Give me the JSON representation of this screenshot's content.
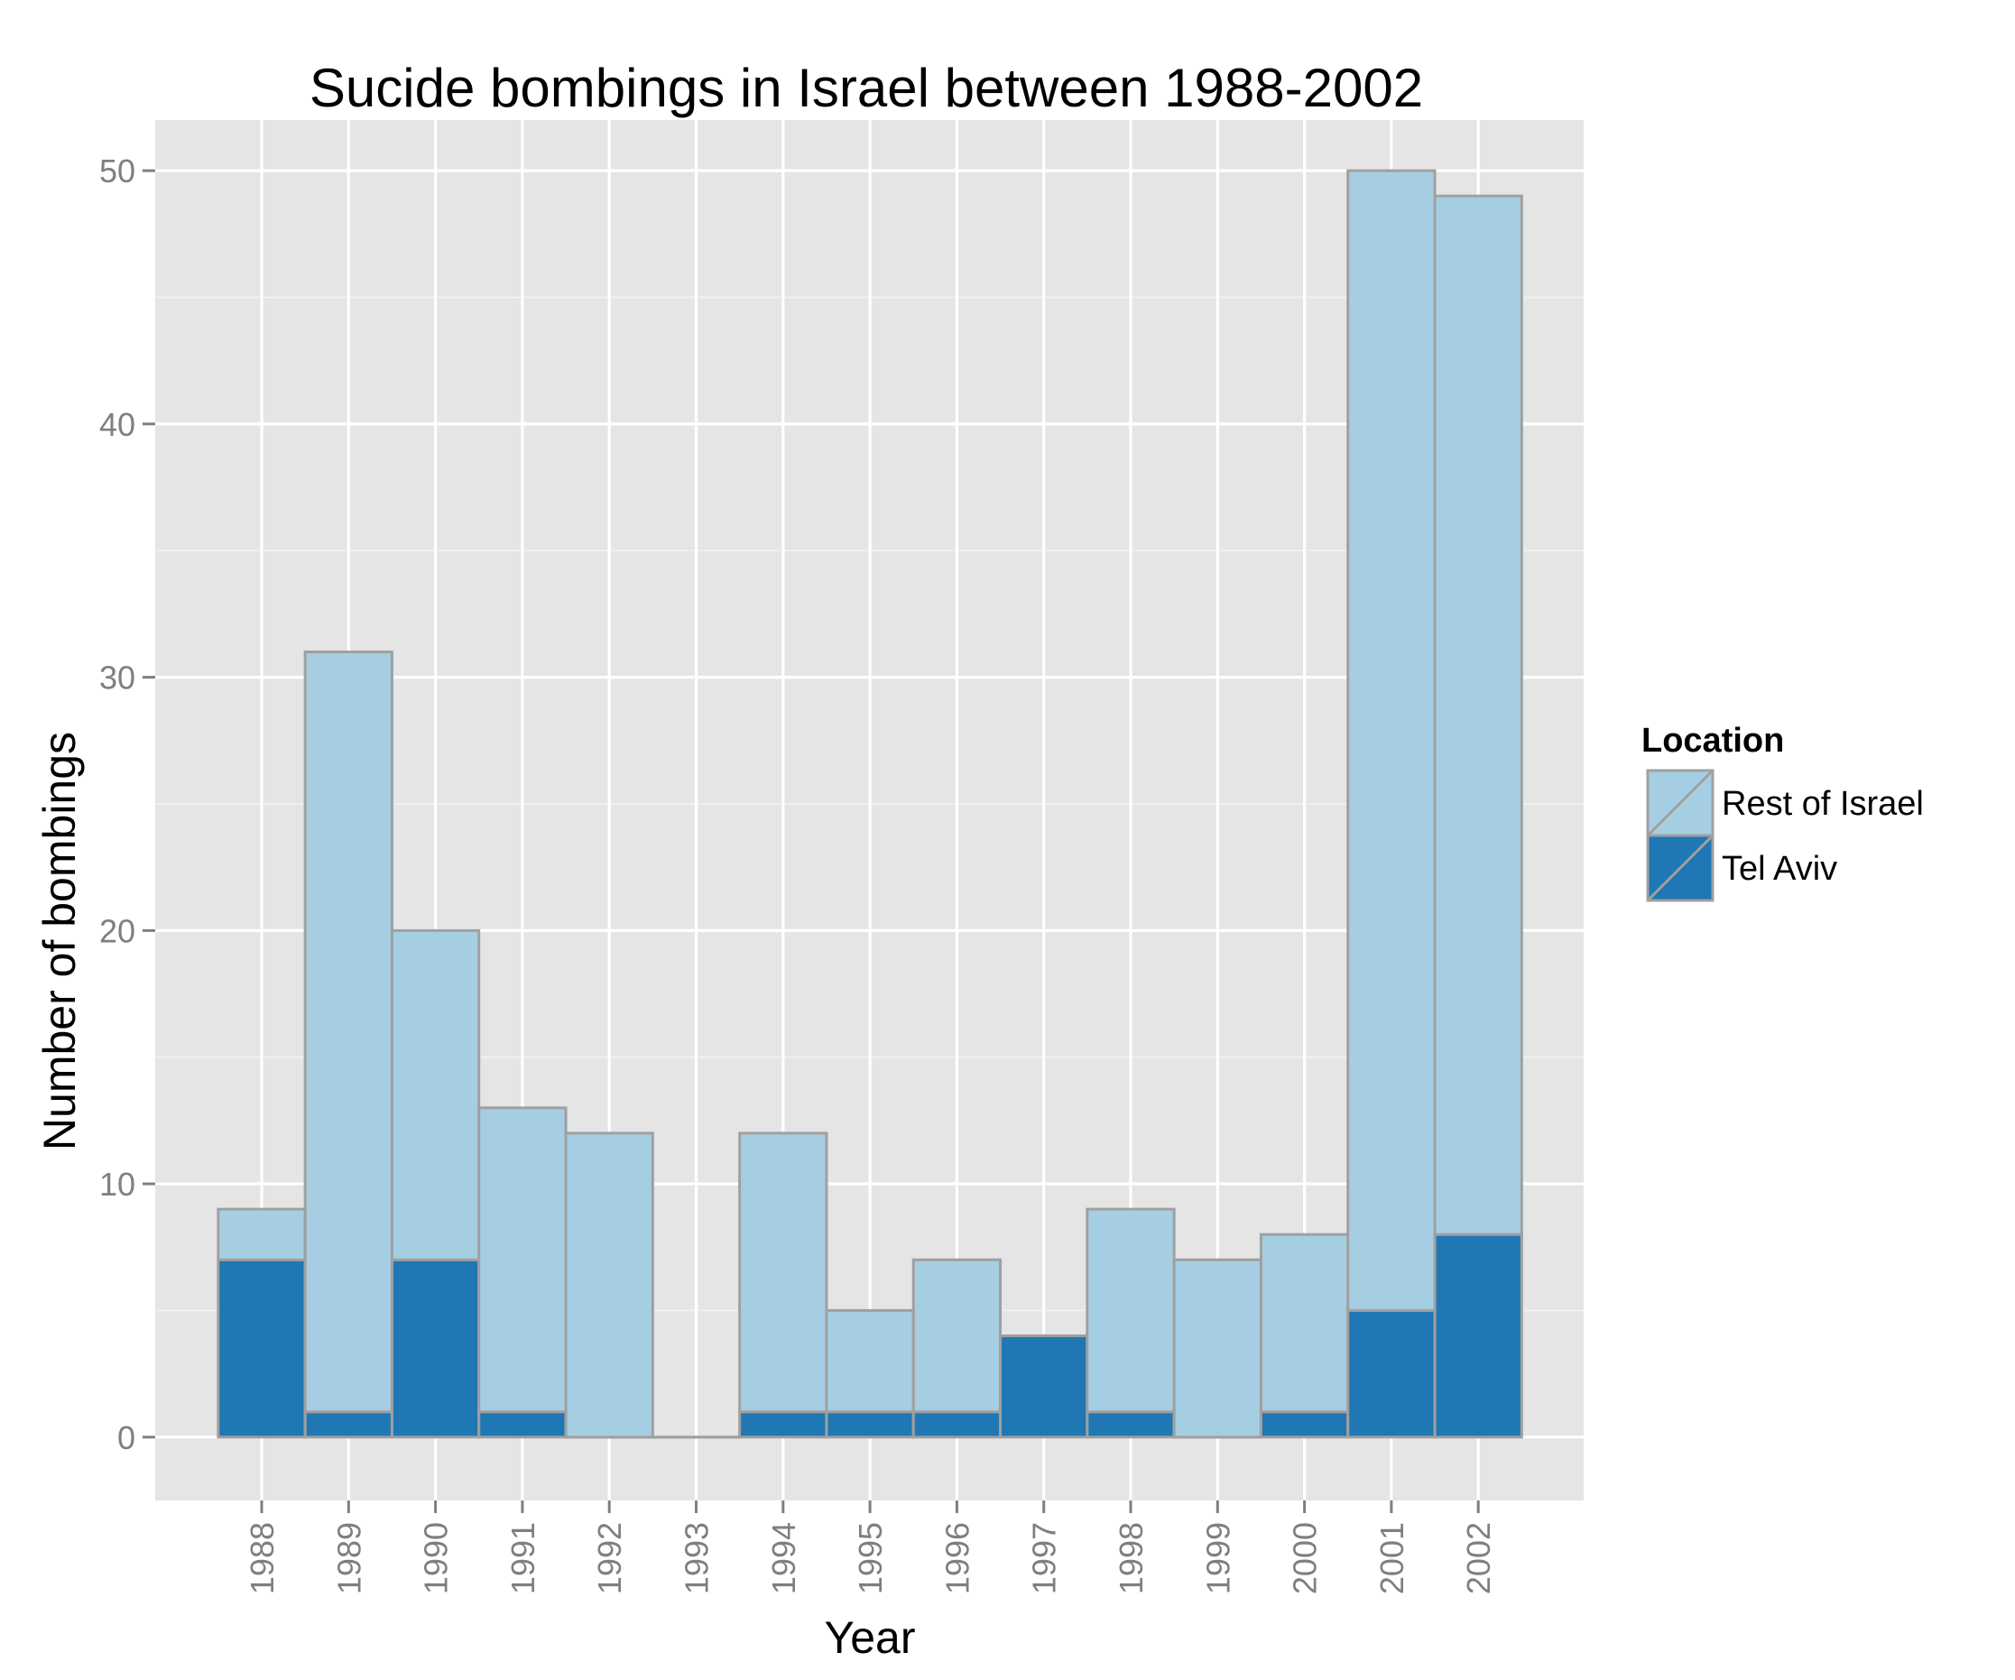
{
  "chart_data": {
    "type": "bar",
    "stacked": true,
    "title": "Sucide bombings in Israel between 1988-2002",
    "xlabel": "Year",
    "ylabel": "Number of bombings",
    "ylim": [
      -2.5,
      52
    ],
    "yticks": [
      0,
      10,
      20,
      30,
      40,
      50
    ],
    "grid": true,
    "legend_position": "right",
    "legend_title": "Location",
    "categories": [
      "1988",
      "1989",
      "1990",
      "1991",
      "1992",
      "1993",
      "1994",
      "1995",
      "1996",
      "1997",
      "1998",
      "1999",
      "2000",
      "2001",
      "2002"
    ],
    "series": [
      {
        "name": "Tel Aviv",
        "color": "#1f78b4",
        "values": [
          7,
          1,
          7,
          1,
          0,
          0,
          1,
          1,
          1,
          4,
          1,
          0,
          1,
          5,
          8
        ]
      },
      {
        "name": "Rest of Israel",
        "color": "#a6cee3",
        "values": [
          2,
          30,
          13,
          12,
          12,
          0,
          11,
          4,
          6,
          0,
          8,
          7,
          7,
          45,
          41
        ]
      }
    ],
    "legend_order": [
      "Rest of Israel",
      "Tel Aviv"
    ],
    "panel_color": "#e5e5e5",
    "outline_color": "#a0a0a0"
  }
}
